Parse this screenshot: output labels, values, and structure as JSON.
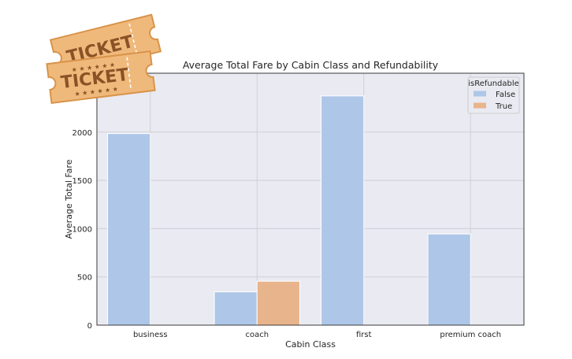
{
  "logo": {
    "name": "ticket-logo",
    "text": "TICKET",
    "colors": {
      "fill": "#f0b97c",
      "stroke": "#d8944a",
      "ink": "#8a5326"
    }
  },
  "chart_data": {
    "type": "bar",
    "title": "Average Total Fare by Cabin Class and Refundability",
    "xlabel": "Cabin Class",
    "ylabel": "Average Total Fare",
    "categories": [
      "business",
      "coach",
      "first",
      "premium coach"
    ],
    "series": [
      {
        "name": "False",
        "color": "#aec7e8",
        "values": [
          1985,
          345,
          2375,
          945
        ]
      },
      {
        "name": "True",
        "color": "#e8b48c",
        "values": [
          null,
          455,
          null,
          null
        ]
      }
    ],
    "ylim": [
      0,
      2610
    ],
    "yticks": [
      0,
      500,
      1000,
      1500,
      2000
    ],
    "legend": {
      "title": "isRefundable",
      "position": "top-right"
    },
    "grid": true,
    "background": "#eaeaf2",
    "grid_color": "#cfcfd8"
  }
}
